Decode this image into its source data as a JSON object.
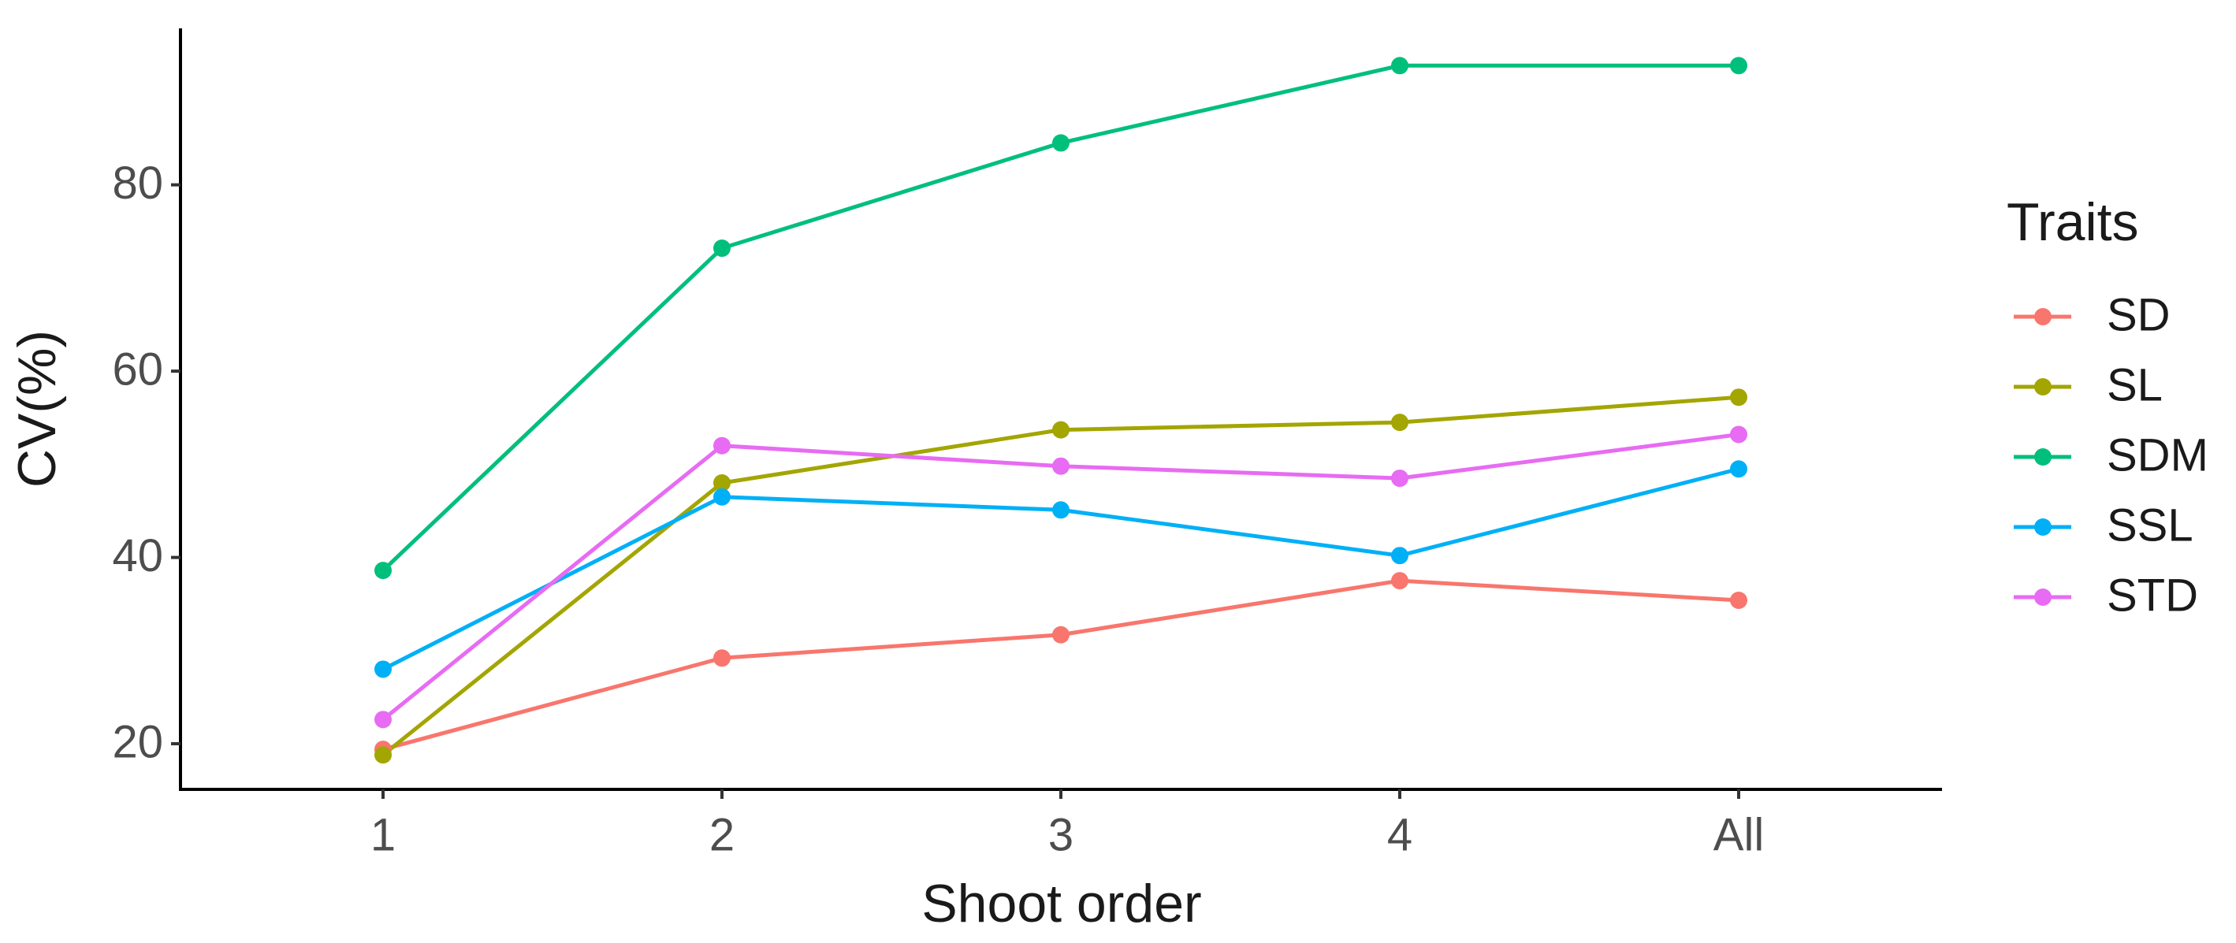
{
  "chart_data": {
    "type": "line",
    "x_label": "Shoot order",
    "y_label": "CV(%)",
    "legend_title": "Traits",
    "categories": [
      "1",
      "2",
      "3",
      "4",
      "All"
    ],
    "series": [
      {
        "name": "SD",
        "color": "#F8766D",
        "values": [
          19.4,
          29.2,
          31.7,
          37.5,
          35.4
        ]
      },
      {
        "name": "SL",
        "color": "#A3A500",
        "values": [
          18.8,
          48,
          53.7,
          54.5,
          57.2
        ]
      },
      {
        "name": "SDM",
        "color": "#00BF7D",
        "values": [
          38.6,
          73.2,
          84.5,
          92.8,
          92.8
        ]
      },
      {
        "name": "SSL",
        "color": "#00B0F6",
        "values": [
          28,
          46.5,
          45.1,
          40.2,
          49.5
        ]
      },
      {
        "name": "STD",
        "color": "#E76BF3",
        "values": [
          22.6,
          52,
          49.8,
          48.5,
          53.2
        ]
      }
    ],
    "ylim": [
      15.1,
      96.8
    ],
    "yticks": [
      20,
      40,
      60,
      80
    ],
    "grid": false,
    "legend": "right"
  }
}
